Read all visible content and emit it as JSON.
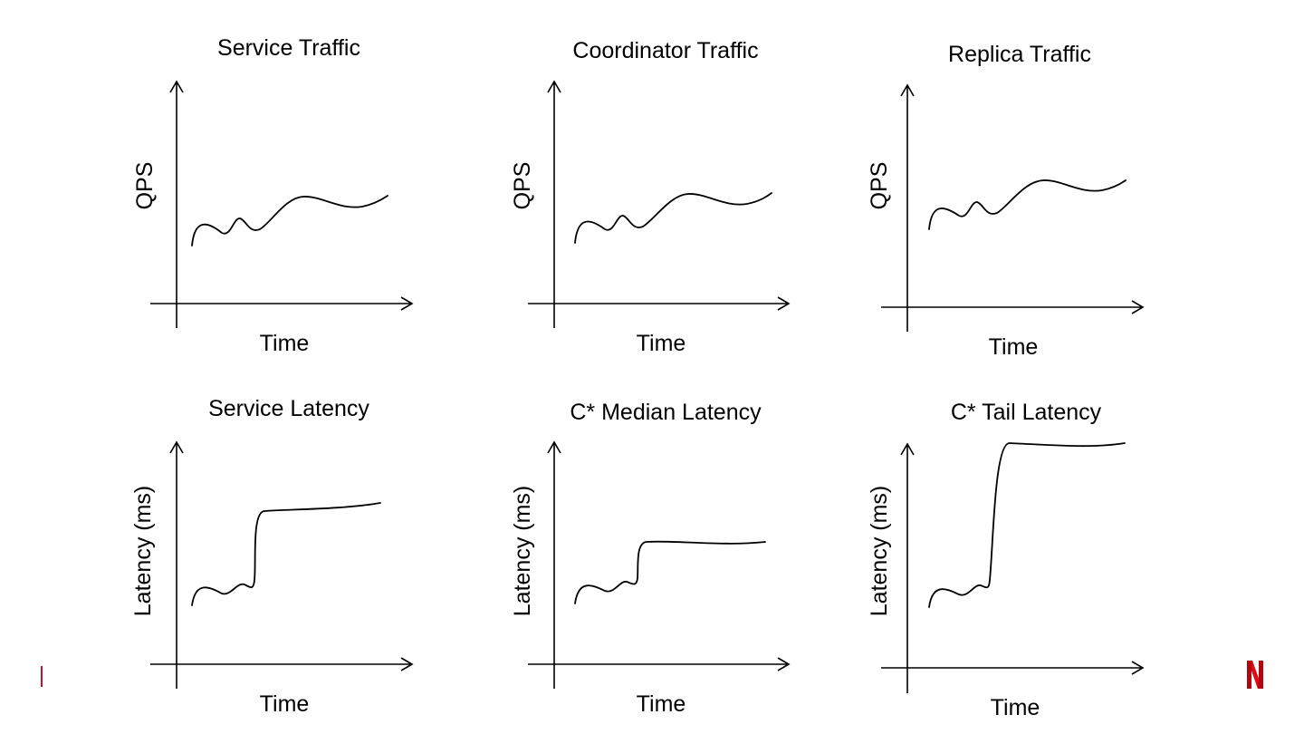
{
  "charts": [
    {
      "title": "Service Traffic",
      "ylabel": "QPS",
      "xlabel": "Time"
    },
    {
      "title": "Coordinator Traffic",
      "ylabel": "QPS",
      "xlabel": "Time"
    },
    {
      "title": "Replica Traffic",
      "ylabel": "QPS",
      "xlabel": "Time"
    },
    {
      "title": "Service Latency",
      "ylabel": "Latency (ms)",
      "xlabel": "Time"
    },
    {
      "title": "C* Median Latency",
      "ylabel": "Latency (ms)",
      "xlabel": "Time"
    },
    {
      "title": "C* Tail Latency",
      "ylabel": "Latency (ms)",
      "xlabel": "Time"
    }
  ],
  "colors": {
    "brand": "#e50914",
    "brand_dark": "#b1060f",
    "line": "#000000"
  },
  "logo": {
    "text": "N"
  }
}
